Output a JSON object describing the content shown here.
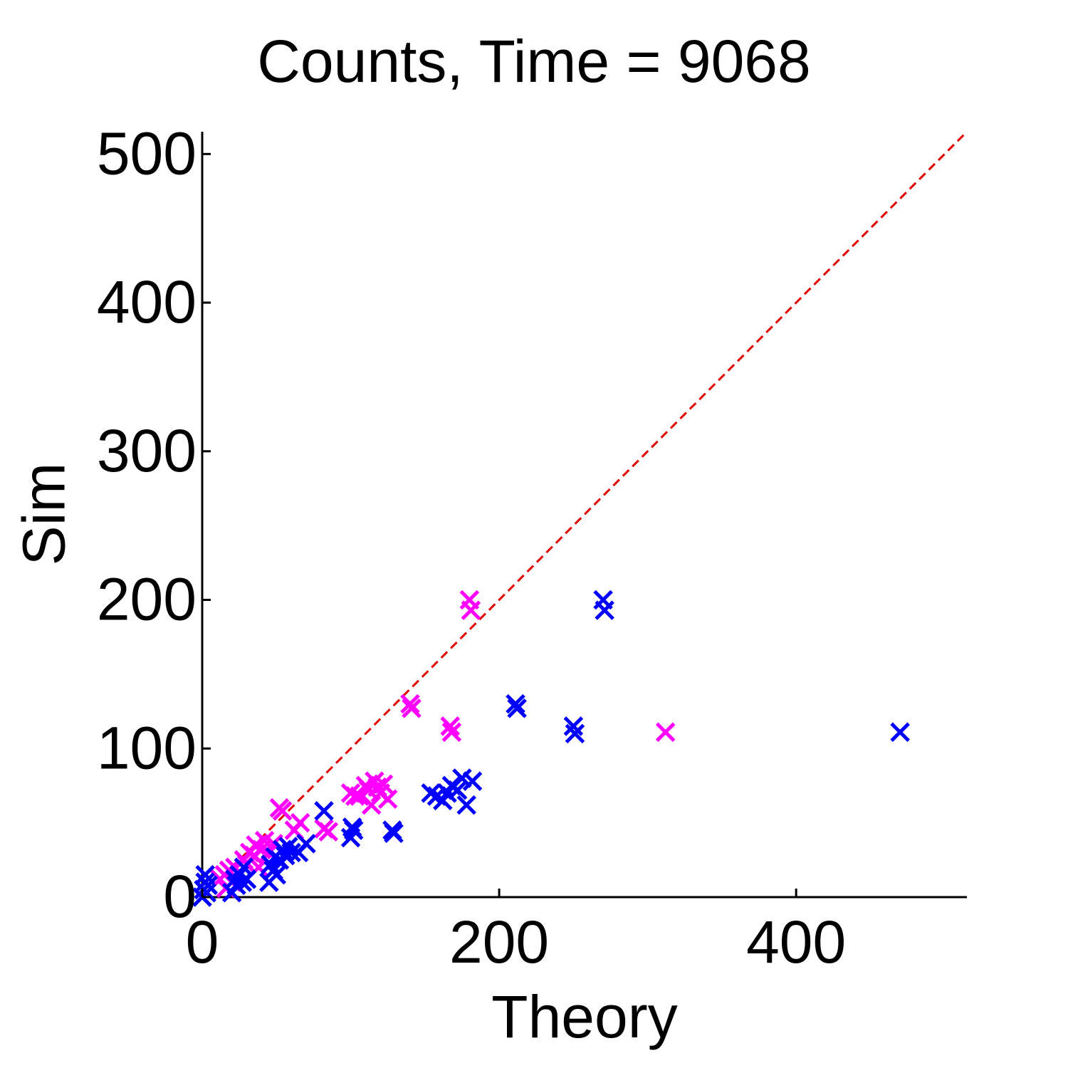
{
  "chart_data": {
    "type": "scatter",
    "title": "Counts, Time = 9068",
    "xlabel": "Theory",
    "ylabel": "Sim",
    "xlim": [
      0,
      515
    ],
    "ylim": [
      0,
      515
    ],
    "xticks": [
      0,
      200,
      400
    ],
    "yticks": [
      0,
      100,
      200,
      300,
      400,
      500
    ],
    "grid": false,
    "legend": "none",
    "reference_line": {
      "from": [
        0,
        0
      ],
      "to": [
        515,
        515
      ],
      "style": "dashed",
      "color": "#e00000"
    },
    "series": [
      {
        "color": "#ff00ff",
        "marker": "x",
        "points": [
          [
            12,
            12
          ],
          [
            15,
            15
          ],
          [
            16,
            6
          ],
          [
            18,
            18
          ],
          [
            20,
            10
          ],
          [
            22,
            20
          ],
          [
            25,
            15
          ],
          [
            28,
            25
          ],
          [
            30,
            22
          ],
          [
            32,
            30
          ],
          [
            35,
            28
          ],
          [
            36,
            35
          ],
          [
            38,
            20
          ],
          [
            40,
            32
          ],
          [
            42,
            38
          ],
          [
            45,
            30
          ],
          [
            48,
            36
          ],
          [
            52,
            60
          ],
          [
            54,
            58
          ],
          [
            62,
            45
          ],
          [
            66,
            50
          ],
          [
            82,
            46
          ],
          [
            85,
            44
          ],
          [
            100,
            70
          ],
          [
            103,
            68
          ],
          [
            106,
            68
          ],
          [
            110,
            75
          ],
          [
            112,
            72
          ],
          [
            114,
            62
          ],
          [
            116,
            78
          ],
          [
            118,
            74
          ],
          [
            120,
            70
          ],
          [
            122,
            76
          ],
          [
            125,
            66
          ],
          [
            140,
            130
          ],
          [
            141,
            127
          ],
          [
            167,
            115
          ],
          [
            168,
            111
          ],
          [
            180,
            200
          ],
          [
            181,
            193
          ],
          [
            312,
            111
          ]
        ]
      },
      {
        "color": "#0000ff",
        "marker": "x",
        "points": [
          [
            0,
            0
          ],
          [
            1,
            5
          ],
          [
            2,
            10
          ],
          [
            2,
            15
          ],
          [
            3,
            3
          ],
          [
            4,
            8
          ],
          [
            20,
            3
          ],
          [
            22,
            12
          ],
          [
            23,
            8
          ],
          [
            25,
            15
          ],
          [
            27,
            10
          ],
          [
            28,
            20
          ],
          [
            30,
            12
          ],
          [
            45,
            10
          ],
          [
            46,
            22
          ],
          [
            48,
            18
          ],
          [
            49,
            27
          ],
          [
            50,
            15
          ],
          [
            52,
            25
          ],
          [
            54,
            32
          ],
          [
            56,
            28
          ],
          [
            58,
            34
          ],
          [
            60,
            30
          ],
          [
            65,
            30
          ],
          [
            70,
            36
          ],
          [
            82,
            58
          ],
          [
            100,
            40
          ],
          [
            101,
            47
          ],
          [
            102,
            45
          ],
          [
            128,
            45
          ],
          [
            129,
            43
          ],
          [
            154,
            70
          ],
          [
            158,
            68
          ],
          [
            162,
            65
          ],
          [
            165,
            70
          ],
          [
            168,
            75
          ],
          [
            172,
            72
          ],
          [
            175,
            80
          ],
          [
            178,
            62
          ],
          [
            182,
            78
          ],
          [
            211,
            130
          ],
          [
            212,
            127
          ],
          [
            250,
            115
          ],
          [
            251,
            110
          ],
          [
            270,
            200
          ],
          [
            271,
            193
          ],
          [
            470,
            111
          ]
        ]
      }
    ]
  }
}
